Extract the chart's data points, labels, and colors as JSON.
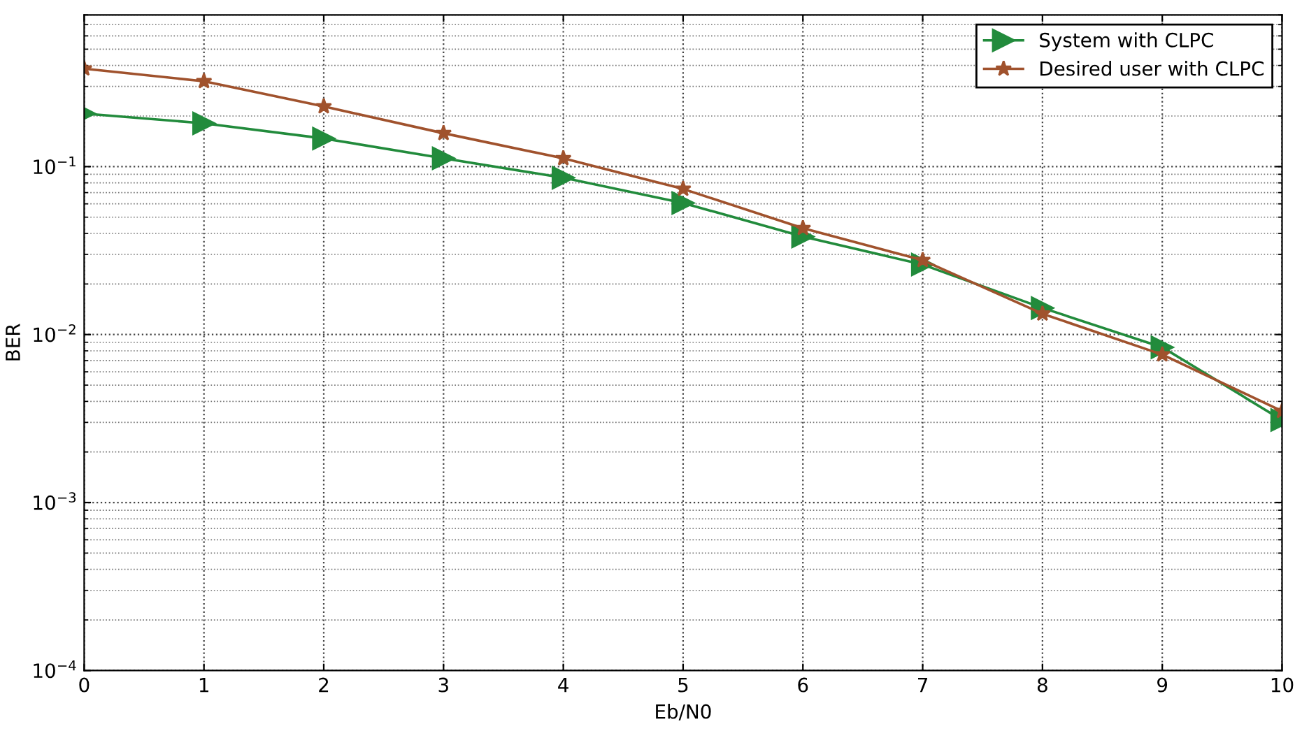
{
  "chart_data": {
    "type": "line",
    "xlabel": "Eb/N0",
    "ylabel": "BER",
    "x": [
      0,
      1,
      2,
      3,
      4,
      5,
      6,
      7,
      8,
      9,
      10
    ],
    "series": [
      {
        "name": "System with CLPC",
        "color": "#228b3c",
        "marker": "triangle",
        "values": [
          0.207,
          0.181,
          0.147,
          0.112,
          0.0858,
          0.0607,
          0.0383,
          0.0261,
          0.0144,
          0.0084,
          0.0031
        ]
      },
      {
        "name": "Desired user with CLPC",
        "color": "#a0522d",
        "marker": "star",
        "values": [
          0.383,
          0.322,
          0.228,
          0.158,
          0.112,
          0.0736,
          0.043,
          0.0277,
          0.0133,
          0.0076,
          0.0035
        ]
      }
    ],
    "log": "y",
    "xlim": [
      0,
      10
    ],
    "ylim": [
      0.0001,
      0.8
    ],
    "xticks": [
      0,
      1,
      2,
      3,
      4,
      5,
      6,
      7,
      8,
      9,
      10
    ],
    "yticks": [
      {
        "value": 0.0001,
        "label": "10$^{−4}$"
      },
      {
        "value": 0.001,
        "label": "10$^{−3}$"
      },
      {
        "value": 0.01,
        "label": "10$^{−2}$"
      },
      {
        "value": 0.1,
        "label": "10$^{−1}$"
      }
    ],
    "grid": true,
    "legend": "top right",
    "line_style": "solid"
  }
}
